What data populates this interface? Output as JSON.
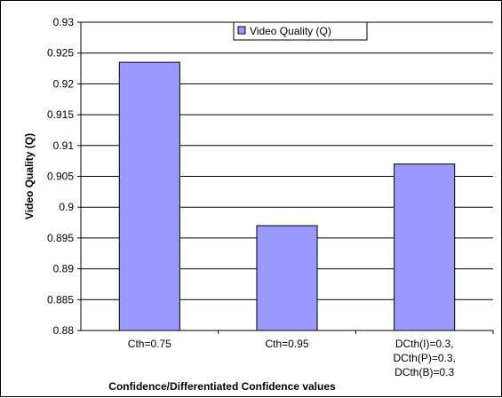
{
  "chart_data": {
    "type": "bar",
    "categories": [
      [
        "Cth=0.75"
      ],
      [
        "Cth=0.95"
      ],
      [
        "DCth(I)=0.3,",
        "DCth(P)=0.3,",
        "DCth(B)=0.3"
      ]
    ],
    "series": [
      {
        "name": "Video Quality (Q)",
        "values": [
          0.9235,
          0.897,
          0.907
        ],
        "color": "#9999ff"
      }
    ],
    "xlabel": "Confidence/Differentiated Confidence values",
    "ylabel": "Video Quality (Q)",
    "ylim": [
      0.88,
      0.93
    ],
    "yticks": [
      "0.88",
      "0.885",
      "0.89",
      "0.895",
      "0.9",
      "0.905",
      "0.91",
      "0.915",
      "0.92",
      "0.925",
      "0.93"
    ],
    "grid": true,
    "legend_position": "top-center"
  }
}
